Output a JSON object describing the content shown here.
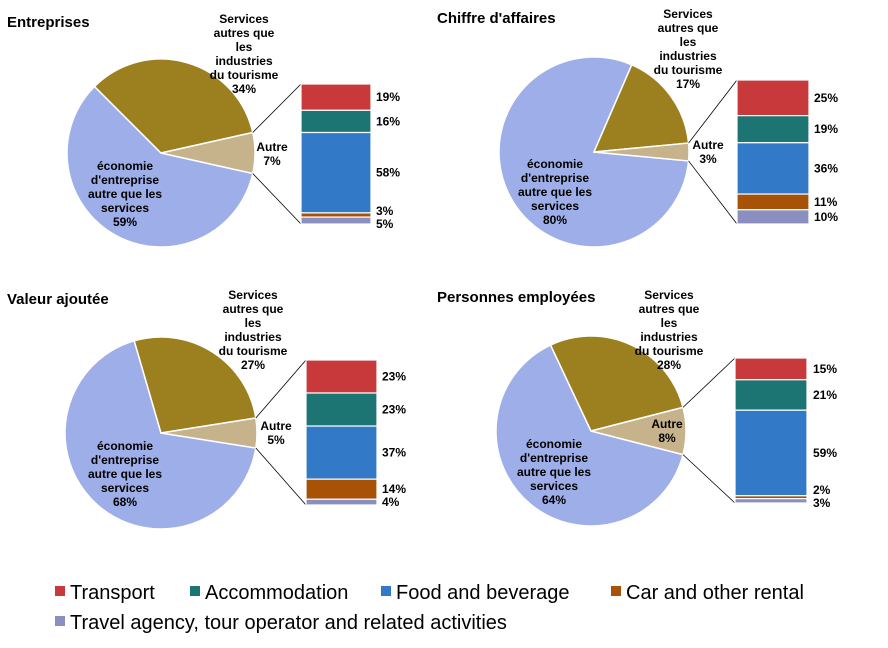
{
  "colors": {
    "pie_other_economy": "#9eaee8",
    "pie_services_non_tourism": "#9c7f1e",
    "pie_autre": "#c6b38b",
    "transport": "#c8393b",
    "accommodation": "#1c7573",
    "food_beverage": "#3279c8",
    "car_rental": "#a85208",
    "travel_agency": "#8a8fc0",
    "connector": "#000000"
  },
  "legend": {
    "items": [
      {
        "key": "transport",
        "label": "Transport"
      },
      {
        "key": "accommodation",
        "label": "Accommodation"
      },
      {
        "key": "food_beverage",
        "label": "Food and beverage"
      },
      {
        "key": "car_rental",
        "label": "Car and other rental"
      },
      {
        "key": "travel_agency",
        "label": "Travel agency, tour operator and related activities"
      }
    ]
  },
  "chart_data": [
    {
      "type": "pie",
      "title": "Entreprises",
      "pie": {
        "slices": [
          {
            "key": "pie_autre",
            "label_lines": [
              "Autre"
            ],
            "value": 7,
            "value_label": "7%"
          },
          {
            "key": "pie_services_non_tourism",
            "label_lines": [
              "Services",
              "autres que",
              "les",
              "industries",
              "du tourisme"
            ],
            "value": 34,
            "value_label": "34%"
          },
          {
            "key": "pie_other_economy",
            "label_lines": [
              "économie",
              "d'entreprise",
              "autre que les",
              "services"
            ],
            "value": 59,
            "value_label": "59%"
          }
        ]
      },
      "breakdown": {
        "type": "stacked_bar",
        "of": "Autre",
        "segments": [
          {
            "key": "transport",
            "value": 19,
            "value_label": "19%"
          },
          {
            "key": "accommodation",
            "value": 16,
            "value_label": "16%"
          },
          {
            "key": "food_beverage",
            "value": 58,
            "value_label": "58%"
          },
          {
            "key": "car_rental",
            "value": 3,
            "value_label": "3%"
          },
          {
            "key": "travel_agency",
            "value": 5,
            "value_label": "5%"
          }
        ]
      }
    },
    {
      "type": "pie",
      "title": "Chiffre d'affaires",
      "pie": {
        "slices": [
          {
            "key": "pie_autre",
            "label_lines": [
              "Autre"
            ],
            "value": 3,
            "value_label": "3%"
          },
          {
            "key": "pie_services_non_tourism",
            "label_lines": [
              "Services",
              "autres que",
              "les",
              "industries",
              "du tourisme"
            ],
            "value": 17,
            "value_label": "17%"
          },
          {
            "key": "pie_other_economy",
            "label_lines": [
              "économie",
              "d'entreprise",
              "autre que les",
              "services"
            ],
            "value": 80,
            "value_label": "80%"
          }
        ]
      },
      "breakdown": {
        "type": "stacked_bar",
        "of": "Autre",
        "segments": [
          {
            "key": "transport",
            "value": 25,
            "value_label": "25%"
          },
          {
            "key": "accommodation",
            "value": 19,
            "value_label": "19%"
          },
          {
            "key": "food_beverage",
            "value": 36,
            "value_label": "36%"
          },
          {
            "key": "car_rental",
            "value": 11,
            "value_label": "11%"
          },
          {
            "key": "travel_agency",
            "value": 10,
            "value_label": "10%"
          }
        ]
      }
    },
    {
      "type": "pie",
      "title": "Valeur ajoutée",
      "pie": {
        "slices": [
          {
            "key": "pie_autre",
            "label_lines": [
              "Autre"
            ],
            "value": 5,
            "value_label": "5%"
          },
          {
            "key": "pie_services_non_tourism",
            "label_lines": [
              "Services",
              "autres que",
              "les",
              "industries",
              "du tourisme"
            ],
            "value": 27,
            "value_label": "27%"
          },
          {
            "key": "pie_other_economy",
            "label_lines": [
              "économie",
              "d'entreprise",
              "autre que les",
              "services"
            ],
            "value": 68,
            "value_label": "68%"
          }
        ]
      },
      "breakdown": {
        "type": "stacked_bar",
        "of": "Autre",
        "segments": [
          {
            "key": "transport",
            "value": 23,
            "value_label": "23%"
          },
          {
            "key": "accommodation",
            "value": 23,
            "value_label": "23%"
          },
          {
            "key": "food_beverage",
            "value": 37,
            "value_label": "37%"
          },
          {
            "key": "car_rental",
            "value": 14,
            "value_label": "14%"
          },
          {
            "key": "travel_agency",
            "value": 4,
            "value_label": "4%"
          }
        ]
      }
    },
    {
      "type": "pie",
      "title": "Personnes employées",
      "pie": {
        "slices": [
          {
            "key": "pie_autre",
            "label_lines": [
              "Autre"
            ],
            "value": 8,
            "value_label": "8%"
          },
          {
            "key": "pie_services_non_tourism",
            "label_lines": [
              "Services",
              "autres que",
              "les",
              "industries",
              "du tourisme"
            ],
            "value": 28,
            "value_label": "28%"
          },
          {
            "key": "pie_other_economy",
            "label_lines": [
              "économie",
              "d'entreprise",
              "autre que les",
              "services"
            ],
            "value": 64,
            "value_label": "64%"
          }
        ]
      },
      "breakdown": {
        "type": "stacked_bar",
        "of": "Autre",
        "segments": [
          {
            "key": "transport",
            "value": 15,
            "value_label": "15%"
          },
          {
            "key": "accommodation",
            "value": 21,
            "value_label": "21%"
          },
          {
            "key": "food_beverage",
            "value": 59,
            "value_label": "59%"
          },
          {
            "key": "car_rental",
            "value": 2,
            "value_label": "2%"
          },
          {
            "key": "travel_agency",
            "value": 3,
            "value_label": "3%"
          }
        ]
      }
    }
  ]
}
